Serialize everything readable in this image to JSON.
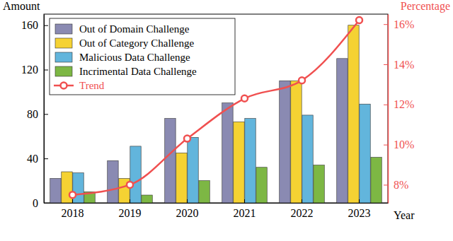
{
  "chart_data": {
    "type": "bar",
    "categories": [
      "2018",
      "2019",
      "2020",
      "2021",
      "2022",
      "2023"
    ],
    "x_label": "Year",
    "y_label": "Amount",
    "y2_label": "Percentage",
    "ylim": [
      0,
      170
    ],
    "yticks": [
      0,
      40,
      80,
      120,
      160
    ],
    "y2lim": [
      7.1,
      16.5
    ],
    "y2ticks": [
      {
        "value": 8,
        "label": "8%"
      },
      {
        "value": 10,
        "label": "10%"
      },
      {
        "value": 12,
        "label": "12%"
      },
      {
        "value": 14,
        "label": "14%"
      },
      {
        "value": 16,
        "label": "16%"
      }
    ],
    "legend": "upper left",
    "series": [
      {
        "name": "Out of Domain Challenge",
        "type": "bar",
        "color": "#8a8ab2",
        "values": [
          22,
          38,
          76,
          90,
          110,
          130
        ]
      },
      {
        "name": "Out of Category Challenge",
        "type": "bar",
        "color": "#f5d233",
        "values": [
          28,
          22,
          45,
          73,
          110,
          160
        ]
      },
      {
        "name": "Malicious Data Challenge",
        "type": "bar",
        "color": "#62b5dc",
        "values": [
          27,
          51,
          59,
          76,
          79,
          89
        ]
      },
      {
        "name": "Incrimental Data Challenge",
        "type": "bar",
        "color": "#7db744",
        "values": [
          10,
          7,
          20,
          32,
          34,
          41
        ]
      },
      {
        "name": "Trend",
        "type": "line",
        "axis": "y2",
        "color": "#f05050",
        "marker": "circle",
        "values": [
          7.5,
          8.0,
          10.3,
          12.3,
          13.2,
          16.2
        ]
      }
    ]
  }
}
